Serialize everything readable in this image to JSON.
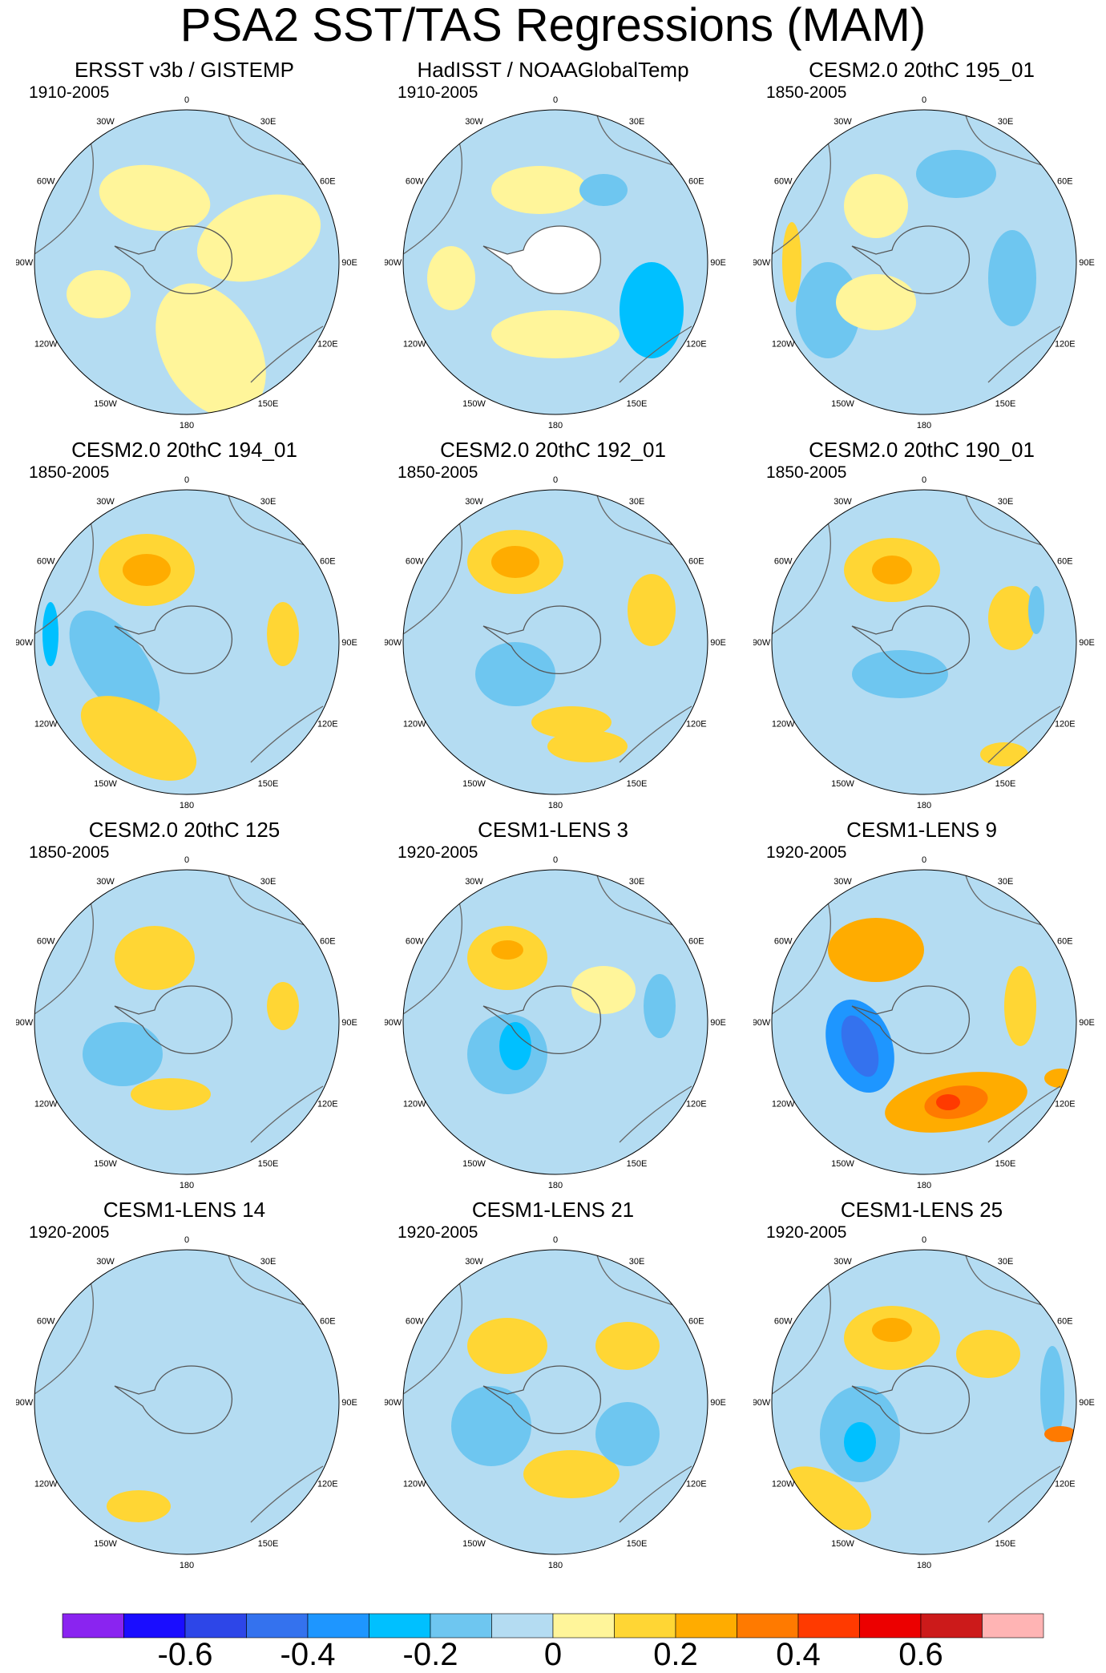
{
  "title": "PSA2 SST/TAS Regressions (MAM)",
  "chart_data": {
    "type": "heatmap",
    "projection": "south-polar-stereographic",
    "longitude_labels": [
      "0",
      "30E",
      "60E",
      "90E",
      "120E",
      "150E",
      "180",
      "150W",
      "120W",
      "90W",
      "60W",
      "30W"
    ],
    "panels": [
      {
        "title": "ERSST v3b / GISTEMP",
        "period": "1910-2005",
        "missing_antarctica": false
      },
      {
        "title": "HadISST / NOAAGlobalTemp",
        "period": "1910-2005",
        "missing_antarctica": true
      },
      {
        "title": "CESM2.0 20thC 195_01",
        "period": "1850-2005",
        "missing_antarctica": false
      },
      {
        "title": "CESM2.0 20thC 194_01",
        "period": "1850-2005",
        "missing_antarctica": false
      },
      {
        "title": "CESM2.0 20thC 192_01",
        "period": "1850-2005",
        "missing_antarctica": false
      },
      {
        "title": "CESM2.0 20thC 190_01",
        "period": "1850-2005",
        "missing_antarctica": false
      },
      {
        "title": "CESM2.0 20thC 125",
        "period": "1850-2005",
        "missing_antarctica": false
      },
      {
        "title": "CESM1-LENS 3",
        "period": "1920-2005",
        "missing_antarctica": false
      },
      {
        "title": "CESM1-LENS 9",
        "period": "1920-2005",
        "missing_antarctica": false
      },
      {
        "title": "CESM1-LENS 14",
        "period": "1920-2005",
        "missing_antarctica": false
      },
      {
        "title": "CESM1-LENS 21",
        "period": "1920-2005",
        "missing_antarctica": false
      },
      {
        "title": "CESM1-LENS 25",
        "period": "1920-2005",
        "missing_antarctica": false
      }
    ],
    "colorbar": {
      "colors": [
        "#8a24f0",
        "#1a0dff",
        "#2d46e8",
        "#3472ee",
        "#1e96ff",
        "#00c0ff",
        "#6ec6f0",
        "#b4dcf2",
        "#fff59a",
        "#ffd634",
        "#ffac00",
        "#ff7a00",
        "#ff3a00",
        "#ec0000",
        "#cc1a1a",
        "#ffb4b4"
      ],
      "tick_labels": [
        "-0.6",
        "-0.4",
        "-0.2",
        "0",
        "0.2",
        "0.4",
        "0.6"
      ]
    }
  }
}
